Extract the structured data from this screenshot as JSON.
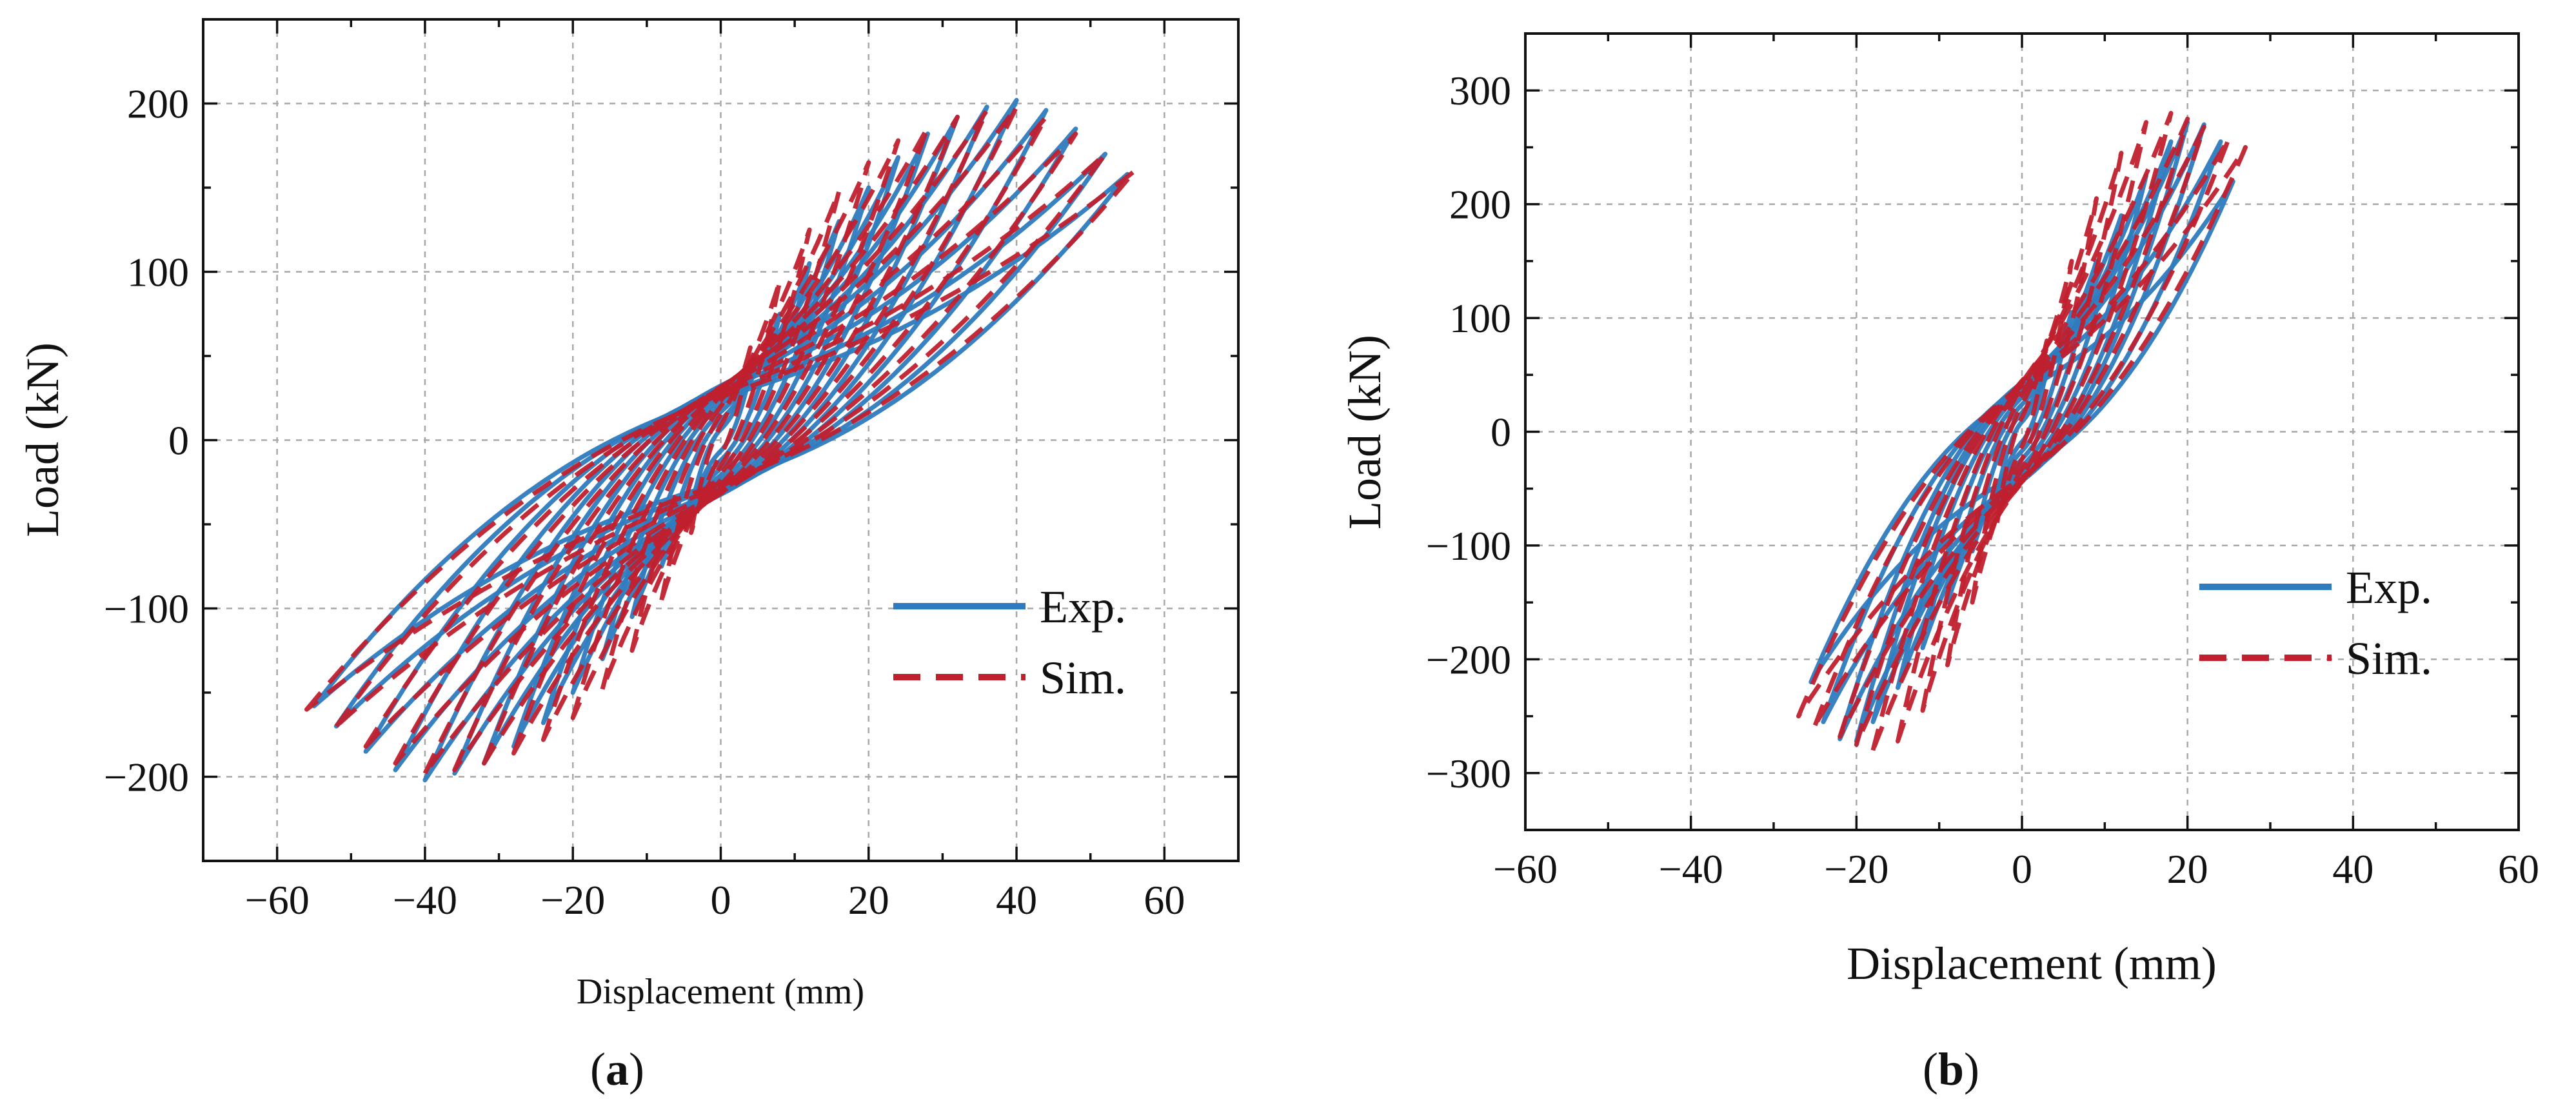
{
  "chart_data": [
    {
      "id": "a",
      "panel_label_open": "(",
      "panel_label_letter": "a",
      "panel_label_close": ")",
      "type": "line",
      "xlabel": "Displacement (mm)",
      "ylabel": "Load (kN)",
      "xlim": [
        -70,
        70
      ],
      "ylim": [
        -250,
        250
      ],
      "xticks": [
        -60,
        -40,
        -20,
        0,
        20,
        40,
        60
      ],
      "yticks": [
        -200,
        -100,
        0,
        100,
        200
      ],
      "xtick_labels": [
        "−60",
        "−40",
        "−20",
        "0",
        "20",
        "40",
        "60"
      ],
      "ytick_labels": [
        "−200",
        "−100",
        "0",
        "100",
        "200"
      ],
      "grid": true,
      "legend_position": "bottom-right",
      "series": [
        {
          "name": "Exp.",
          "color": "#2e7bbf",
          "style": "solid",
          "amplitudes": [
            4,
            8,
            12,
            16,
            20,
            24,
            28,
            32,
            36,
            40,
            44,
            48,
            52,
            55
          ],
          "peaks": [
            40,
            75,
            105,
            130,
            150,
            168,
            182,
            192,
            198,
            202,
            196,
            185,
            170,
            158
          ]
        },
        {
          "name": "Sim.",
          "color": "#c0202e",
          "style": "dashed",
          "amplitudes": [
            4,
            8,
            12,
            16,
            20,
            24,
            28,
            32,
            36,
            40,
            44,
            48,
            52,
            56
          ],
          "peaks": [
            55,
            95,
            125,
            148,
            165,
            178,
            186,
            192,
            196,
            198,
            192,
            182,
            170,
            160
          ]
        }
      ]
    },
    {
      "id": "b",
      "panel_label_open": "(",
      "panel_label_letter": "b",
      "panel_label_close": ")",
      "type": "line",
      "xlabel": "Displacement (mm)",
      "ylabel": "Load (kN)",
      "xlim": [
        -60,
        60
      ],
      "ylim": [
        -350,
        350
      ],
      "xticks": [
        -60,
        -40,
        -20,
        0,
        20,
        40,
        60
      ],
      "yticks": [
        -300,
        -200,
        -100,
        0,
        100,
        200,
        300
      ],
      "xtick_labels": [
        "−60",
        "−40",
        "−20",
        "0",
        "20",
        "40",
        "60"
      ],
      "ytick_labels": [
        "−300",
        "−200",
        "−100",
        "0",
        "100",
        "200",
        "300"
      ],
      "grid": true,
      "legend_position": "right",
      "series": [
        {
          "name": "Exp.",
          "color": "#2e7bbf",
          "style": "solid",
          "amplitudes": [
            3,
            6,
            9,
            12,
            15,
            18,
            20,
            22,
            24,
            25.5
          ],
          "peaks": [
            55,
            105,
            150,
            190,
            225,
            255,
            272,
            270,
            255,
            220
          ]
        },
        {
          "name": "Sim.",
          "color": "#c0202e",
          "style": "dashed",
          "amplitudes": [
            3,
            6,
            9,
            12,
            15,
            18,
            20,
            22,
            25,
            27
          ],
          "peaks": [
            80,
            150,
            205,
            245,
            272,
            280,
            275,
            268,
            258,
            250
          ]
        }
      ]
    }
  ]
}
